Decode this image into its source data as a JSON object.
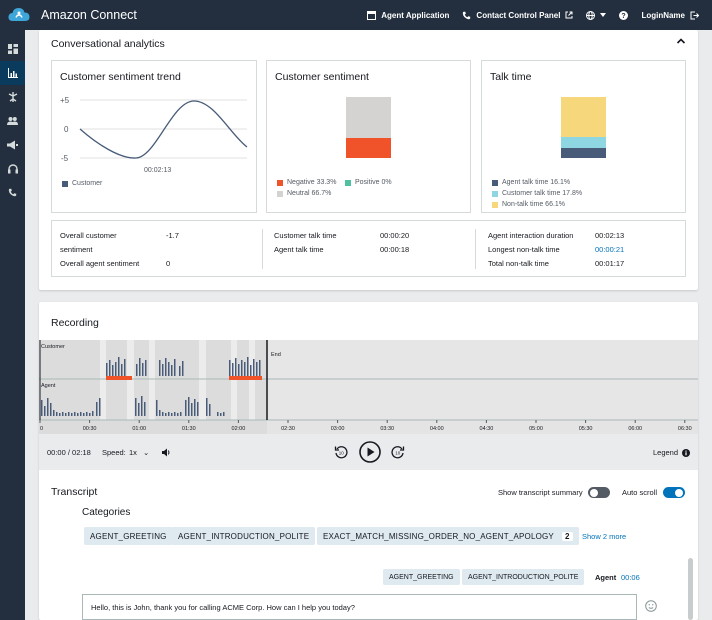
{
  "app": {
    "title": "Amazon Connect"
  },
  "topnav": {
    "agent_app": "Agent Application",
    "ccp": "Contact Control Panel",
    "login": "LoginName"
  },
  "sidenav": [
    "dashboard-icon",
    "analytics-icon",
    "routing-icon",
    "users-icon",
    "campaigns-icon",
    "headset-icon",
    "phone-icon"
  ],
  "analytics": {
    "title": "Conversational analytics",
    "trend": {
      "title": "Customer sentiment trend",
      "y_top": "+5",
      "y_mid": "0",
      "y_bot": "-5",
      "time": "00:02:13",
      "legend": "Customer"
    },
    "sentiment": {
      "title": "Customer sentiment",
      "negative": "Negative 33.3%",
      "positive": "Positive 0%",
      "neutral": "Neutral 66.7%"
    },
    "talk": {
      "title": "Talk time",
      "agent": "Agent talk time 16.1%",
      "customer": "Customer talk time 17.8%",
      "nontalk": "Non-talk time 66.1%"
    },
    "stats": {
      "overall_customer_label_1": "Overall customer",
      "overall_customer_label_2": "sentiment",
      "overall_customer_value": "-1.7",
      "overall_agent_label": "Overall agent sentiment",
      "overall_agent_value": "0",
      "customer_talk_label": "Customer talk time",
      "customer_talk_value": "00:00:20",
      "agent_talk_label": "Agent talk time",
      "agent_talk_value": "00:00:18",
      "interaction_label": "Agent interaction duration",
      "interaction_value": "00:02:13",
      "longest_label": "Longest non-talk time",
      "longest_value": "00:00:21",
      "total_label": "Total non-talk time",
      "total_value": "00:01:17"
    }
  },
  "recording": {
    "title": "Recording",
    "customer_label": "Customer",
    "agent_label": "Agent",
    "end_label": "End",
    "ticks": [
      "0",
      "00:30",
      "01:00",
      "01:30",
      "02:00",
      "02:30",
      "03:00",
      "03:30",
      "04:00",
      "04:30",
      "05:00",
      "05:30",
      "06:00",
      "06:30"
    ],
    "time": "00:00 / 02:18",
    "speed_label": "Speed:",
    "speed_value": "1x",
    "legend": "Legend"
  },
  "transcript": {
    "title": "Transcript",
    "show_summary": "Show transcript summary",
    "auto_scroll": "Auto scroll",
    "categories_title": "Categories",
    "categories": [
      "AGENT_GREETING",
      "AGENT_INTRODUCTION_POLITE",
      "EXACT_MATCH_MISSING_ORDER_NO_AGENT_APOLOGY"
    ],
    "more_count": "2",
    "show_more": "Show 2 more",
    "msg_tags": [
      "AGENT_GREETING",
      "AGENT_INTRODUCTION_POLITE"
    ],
    "speaker": "Agent",
    "timestamp": "00:06",
    "message": "Hello, this is John, thank you for calling ACME Corp. How can I help you today?"
  },
  "colors": {
    "navbar": "#232f3e",
    "accent": "#0073bb",
    "negative": "#f0522a",
    "neutral": "#d5d3d2",
    "positive": "#4fc0a0",
    "agent": "#485b78",
    "customer": "#8dd6e2",
    "nontalk": "#f7d77c"
  }
}
